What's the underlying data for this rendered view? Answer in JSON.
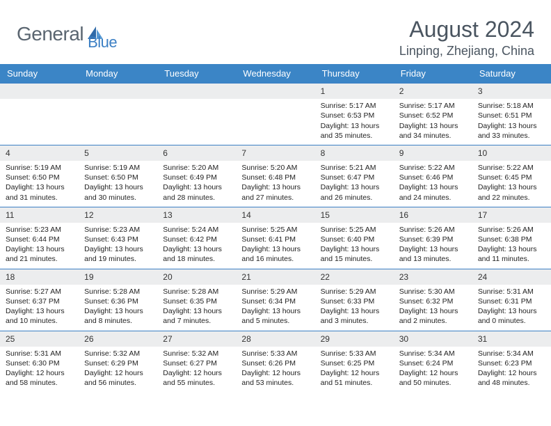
{
  "logo": {
    "text1": "General",
    "text2": "Blue"
  },
  "header": {
    "month": "August 2024",
    "location": "Linping, Zhejiang, China"
  },
  "dayNames": [
    "Sunday",
    "Monday",
    "Tuesday",
    "Wednesday",
    "Thursday",
    "Friday",
    "Saturday"
  ],
  "colors": {
    "headerBg": "#3b85c6",
    "headerText": "#ffffff",
    "dayNumBg": "#ecedee",
    "weekBorder": "#3b7fc4",
    "logoGray": "#5a6570",
    "logoBlue": "#3b7fc4"
  },
  "weeks": [
    [
      null,
      null,
      null,
      null,
      {
        "n": "1",
        "sr": "5:17 AM",
        "ss": "6:53 PM",
        "dl": "13 hours and 35 minutes."
      },
      {
        "n": "2",
        "sr": "5:17 AM",
        "ss": "6:52 PM",
        "dl": "13 hours and 34 minutes."
      },
      {
        "n": "3",
        "sr": "5:18 AM",
        "ss": "6:51 PM",
        "dl": "13 hours and 33 minutes."
      }
    ],
    [
      {
        "n": "4",
        "sr": "5:19 AM",
        "ss": "6:50 PM",
        "dl": "13 hours and 31 minutes."
      },
      {
        "n": "5",
        "sr": "5:19 AM",
        "ss": "6:50 PM",
        "dl": "13 hours and 30 minutes."
      },
      {
        "n": "6",
        "sr": "5:20 AM",
        "ss": "6:49 PM",
        "dl": "13 hours and 28 minutes."
      },
      {
        "n": "7",
        "sr": "5:20 AM",
        "ss": "6:48 PM",
        "dl": "13 hours and 27 minutes."
      },
      {
        "n": "8",
        "sr": "5:21 AM",
        "ss": "6:47 PM",
        "dl": "13 hours and 26 minutes."
      },
      {
        "n": "9",
        "sr": "5:22 AM",
        "ss": "6:46 PM",
        "dl": "13 hours and 24 minutes."
      },
      {
        "n": "10",
        "sr": "5:22 AM",
        "ss": "6:45 PM",
        "dl": "13 hours and 22 minutes."
      }
    ],
    [
      {
        "n": "11",
        "sr": "5:23 AM",
        "ss": "6:44 PM",
        "dl": "13 hours and 21 minutes."
      },
      {
        "n": "12",
        "sr": "5:23 AM",
        "ss": "6:43 PM",
        "dl": "13 hours and 19 minutes."
      },
      {
        "n": "13",
        "sr": "5:24 AM",
        "ss": "6:42 PM",
        "dl": "13 hours and 18 minutes."
      },
      {
        "n": "14",
        "sr": "5:25 AM",
        "ss": "6:41 PM",
        "dl": "13 hours and 16 minutes."
      },
      {
        "n": "15",
        "sr": "5:25 AM",
        "ss": "6:40 PM",
        "dl": "13 hours and 15 minutes."
      },
      {
        "n": "16",
        "sr": "5:26 AM",
        "ss": "6:39 PM",
        "dl": "13 hours and 13 minutes."
      },
      {
        "n": "17",
        "sr": "5:26 AM",
        "ss": "6:38 PM",
        "dl": "13 hours and 11 minutes."
      }
    ],
    [
      {
        "n": "18",
        "sr": "5:27 AM",
        "ss": "6:37 PM",
        "dl": "13 hours and 10 minutes."
      },
      {
        "n": "19",
        "sr": "5:28 AM",
        "ss": "6:36 PM",
        "dl": "13 hours and 8 minutes."
      },
      {
        "n": "20",
        "sr": "5:28 AM",
        "ss": "6:35 PM",
        "dl": "13 hours and 7 minutes."
      },
      {
        "n": "21",
        "sr": "5:29 AM",
        "ss": "6:34 PM",
        "dl": "13 hours and 5 minutes."
      },
      {
        "n": "22",
        "sr": "5:29 AM",
        "ss": "6:33 PM",
        "dl": "13 hours and 3 minutes."
      },
      {
        "n": "23",
        "sr": "5:30 AM",
        "ss": "6:32 PM",
        "dl": "13 hours and 2 minutes."
      },
      {
        "n": "24",
        "sr": "5:31 AM",
        "ss": "6:31 PM",
        "dl": "13 hours and 0 minutes."
      }
    ],
    [
      {
        "n": "25",
        "sr": "5:31 AM",
        "ss": "6:30 PM",
        "dl": "12 hours and 58 minutes."
      },
      {
        "n": "26",
        "sr": "5:32 AM",
        "ss": "6:29 PM",
        "dl": "12 hours and 56 minutes."
      },
      {
        "n": "27",
        "sr": "5:32 AM",
        "ss": "6:27 PM",
        "dl": "12 hours and 55 minutes."
      },
      {
        "n": "28",
        "sr": "5:33 AM",
        "ss": "6:26 PM",
        "dl": "12 hours and 53 minutes."
      },
      {
        "n": "29",
        "sr": "5:33 AM",
        "ss": "6:25 PM",
        "dl": "12 hours and 51 minutes."
      },
      {
        "n": "30",
        "sr": "5:34 AM",
        "ss": "6:24 PM",
        "dl": "12 hours and 50 minutes."
      },
      {
        "n": "31",
        "sr": "5:34 AM",
        "ss": "6:23 PM",
        "dl": "12 hours and 48 minutes."
      }
    ]
  ],
  "labels": {
    "sunrise": "Sunrise: ",
    "sunset": "Sunset: ",
    "daylight": "Daylight: "
  }
}
